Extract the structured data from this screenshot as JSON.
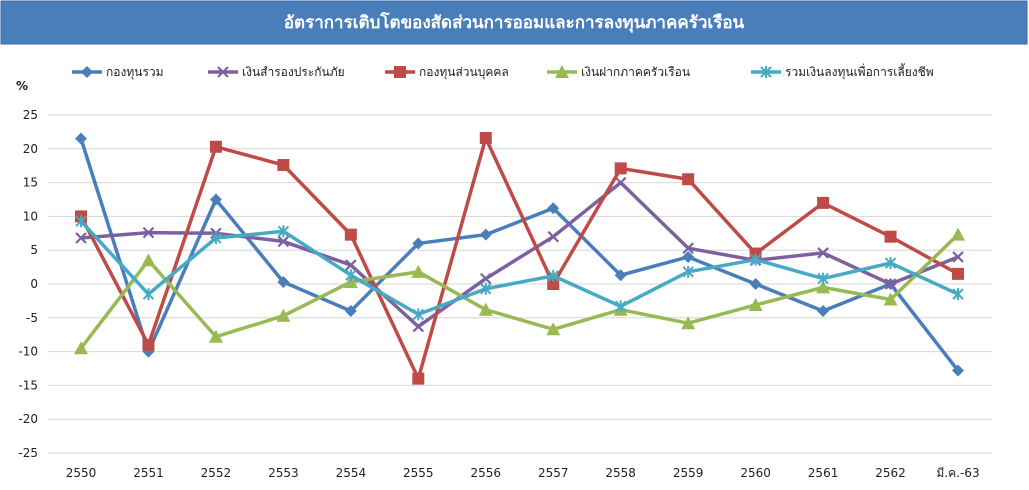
{
  "chart_data": {
    "type": "line",
    "title": "อัตราการเติบโตของสัดส่วนการออมและการลงทุนภาคครัวเรือน",
    "ylabel": "%",
    "xlabel": "",
    "categories": [
      "2550",
      "2551",
      "2552",
      "2553",
      "2554",
      "2555",
      "2556",
      "2557",
      "2558",
      "2559",
      "2560",
      "2561",
      "2562",
      "มี.ค.-63"
    ],
    "ylim": [
      -25,
      25
    ],
    "yticks": [
      25,
      20,
      15,
      10,
      5,
      0,
      -5,
      -10,
      -15,
      -20,
      -25
    ],
    "grid": true,
    "legend_position": "top",
    "series": [
      {
        "name": "กองทุนรวม",
        "color": "#4a7ebb",
        "marker": "diamond",
        "values": [
          21.5,
          -10.0,
          12.5,
          0.3,
          -4.0,
          6.0,
          7.3,
          11.2,
          1.3,
          4.0,
          0.0,
          -4.0,
          0.0,
          -12.8
        ]
      },
      {
        "name": "เงินสำรองประกันภัย",
        "color": "#7d60a0",
        "marker": "x",
        "values": [
          6.8,
          7.6,
          7.5,
          6.3,
          2.8,
          -6.3,
          0.8,
          7.0,
          15.0,
          5.3,
          3.5,
          4.6,
          0.0,
          4.0
        ]
      },
      {
        "name": "กองทุนส่วนบุคคล",
        "color": "#be4b48",
        "marker": "square",
        "values": [
          10.0,
          -9.0,
          20.3,
          17.6,
          7.3,
          -14.0,
          21.6,
          0.0,
          17.1,
          15.5,
          4.5,
          12.0,
          7.0,
          1.5
        ]
      },
      {
        "name": "เงินฝากภาคครัวเรือน",
        "color": "#98b954",
        "marker": "triangle",
        "values": [
          -9.5,
          3.5,
          -7.8,
          -4.7,
          0.3,
          1.8,
          -3.8,
          -6.7,
          -3.8,
          -5.8,
          -3.1,
          -0.5,
          -2.3,
          7.3
        ]
      },
      {
        "name": "รวมเงินลงทุนเพื่อการเลี้ยงชีพ",
        "color": "#46aac4",
        "marker": "star",
        "values": [
          9.3,
          -1.5,
          6.8,
          7.8,
          1.3,
          -4.5,
          -0.7,
          1.2,
          -3.3,
          1.8,
          3.6,
          0.8,
          3.1,
          -1.5
        ]
      }
    ]
  }
}
